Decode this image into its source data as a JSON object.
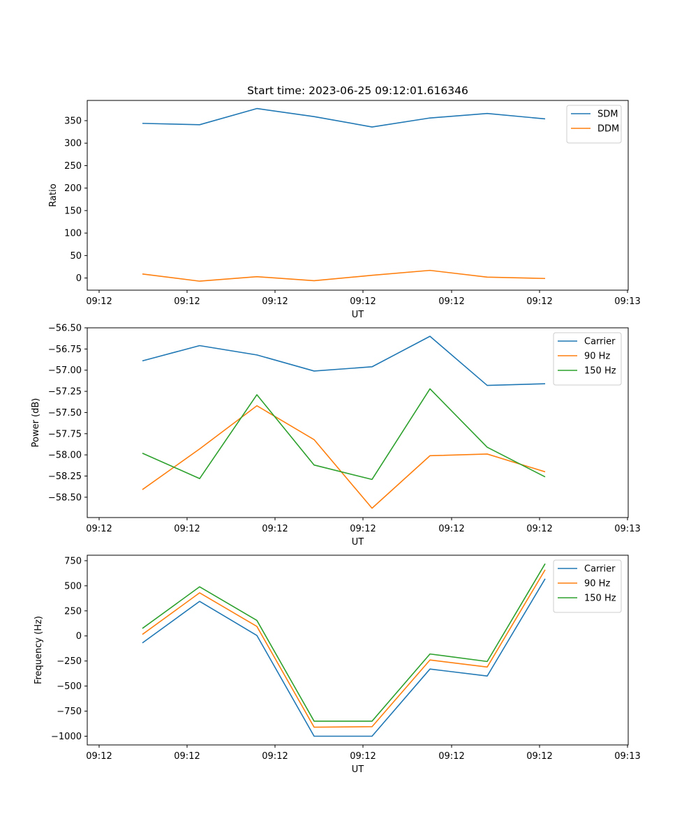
{
  "chart_data": [
    {
      "type": "line",
      "title": "Start time: 2023-06-25 09:12:01.616346",
      "xlabel": "UT",
      "ylabel": "Ratio",
      "x_tick_labels": [
        "09:12",
        "09:12",
        "09:12",
        "09:12",
        "09:12",
        "09:12",
        "09:13"
      ],
      "ylim": [
        -27,
        395
      ],
      "yticks": [
        0,
        50,
        100,
        150,
        200,
        250,
        300,
        350
      ],
      "y_tick_labels": [
        "0",
        "50",
        "100",
        "150",
        "200",
        "250",
        "300",
        "350"
      ],
      "legend": "top-right",
      "series": [
        {
          "name": "SDM",
          "color": "#1f77b4",
          "values": [
            344,
            341,
            377,
            359,
            336,
            356,
            366,
            354
          ]
        },
        {
          "name": "DDM",
          "color": "#ff7f0e",
          "values": [
            9,
            -7,
            3,
            -6,
            6,
            17,
            2,
            -1
          ]
        }
      ]
    },
    {
      "type": "line",
      "xlabel": "UT",
      "ylabel": "Power (dB)",
      "x_tick_labels": [
        "09:12",
        "09:12",
        "09:12",
        "09:12",
        "09:12",
        "09:12",
        "09:13"
      ],
      "ylim": [
        -58.74,
        -56.5
      ],
      "yticks": [
        -58.5,
        -58.25,
        -58.0,
        -57.75,
        -57.5,
        -57.25,
        -57.0,
        -56.75,
        -56.5
      ],
      "y_tick_labels": [
        "−58.50",
        "−58.25",
        "−58.00",
        "−57.75",
        "−57.50",
        "−57.25",
        "−57.00",
        "−56.75",
        "−56.50"
      ],
      "legend": "top-right",
      "series": [
        {
          "name": "Carrier",
          "color": "#1f77b4",
          "values": [
            -56.89,
            -56.71,
            -56.82,
            -57.01,
            -56.96,
            -56.6,
            -57.18,
            -57.16
          ]
        },
        {
          "name": "90 Hz",
          "color": "#ff7f0e",
          "values": [
            -58.41,
            -57.93,
            -57.42,
            -57.82,
            -58.63,
            -58.01,
            -57.99,
            -58.2
          ]
        },
        {
          "name": "150 Hz",
          "color": "#2ca02c",
          "values": [
            -57.98,
            -58.28,
            -57.29,
            -58.12,
            -58.29,
            -57.22,
            -57.91,
            -58.26
          ]
        }
      ]
    },
    {
      "type": "line",
      "xlabel": "UT",
      "ylabel": "Frequency (Hz)",
      "x_tick_labels": [
        "09:12",
        "09:12",
        "09:12",
        "09:12",
        "09:12",
        "09:12",
        "09:13"
      ],
      "ylim": [
        -1087,
        805
      ],
      "yticks": [
        -1000,
        -750,
        -500,
        -250,
        0,
        250,
        500,
        750
      ],
      "y_tick_labels": [
        "−1000",
        "−750",
        "−500",
        "−250",
        "0",
        "250",
        "500",
        "750"
      ],
      "legend": "top-right",
      "series": [
        {
          "name": "Carrier",
          "color": "#1f77b4",
          "values": [
            -70,
            345,
            5,
            -1000,
            -1000,
            -330,
            -400,
            570
          ]
        },
        {
          "name": "90 Hz",
          "color": "#ff7f0e",
          "values": [
            15,
            430,
            95,
            -910,
            -905,
            -240,
            -310,
            660
          ]
        },
        {
          "name": "150 Hz",
          "color": "#2ca02c",
          "values": [
            75,
            490,
            155,
            -850,
            -850,
            -180,
            -255,
            720
          ]
        }
      ]
    }
  ]
}
